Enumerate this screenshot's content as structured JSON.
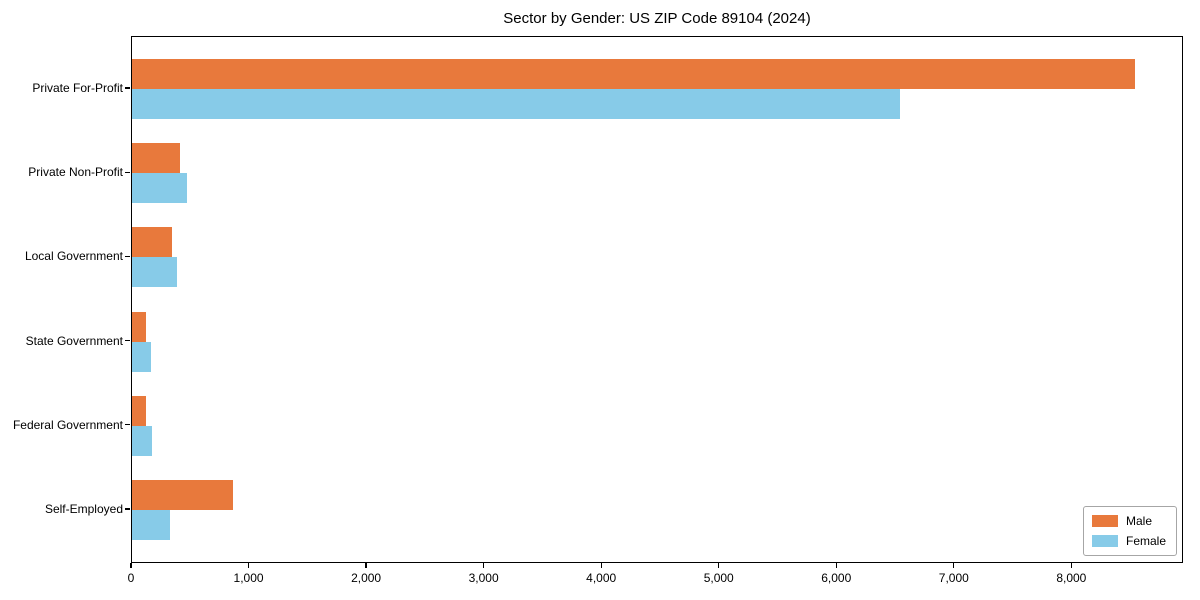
{
  "title": "Sector by Gender: US ZIP Code 89104 (2024)",
  "colors": {
    "male": "#e8793c",
    "female": "#87cbe8",
    "axis": "#000000",
    "legend_border": "#a6a6a6",
    "background": "#ffffff"
  },
  "legend": {
    "position": "lower right",
    "items": [
      {
        "label": "Male",
        "color": "#e8793c"
      },
      {
        "label": "Female",
        "color": "#87cbe8"
      }
    ]
  },
  "chart_data": {
    "type": "bar",
    "orientation": "horizontal",
    "title": "Sector by Gender: US ZIP Code 89104 (2024)",
    "categories": [
      "Private For-Profit",
      "Private Non-Profit",
      "Local Government",
      "State Government",
      "Federal Government",
      "Self-Employed"
    ],
    "series": [
      {
        "name": "Male",
        "color": "#e8793c",
        "values": [
          8530,
          410,
          340,
          120,
          115,
          860
        ]
      },
      {
        "name": "Female",
        "color": "#87cbe8",
        "values": [
          6530,
          465,
          385,
          160,
          170,
          320
        ]
      }
    ],
    "xlabel": "",
    "ylabel": "",
    "xlim": [
      0,
      8950
    ],
    "xticks": [
      0,
      1000,
      2000,
      3000,
      4000,
      5000,
      6000,
      7000,
      8000
    ],
    "xtick_labels": [
      "0",
      "1,000",
      "2,000",
      "3,000",
      "4,000",
      "5,000",
      "6,000",
      "7,000",
      "8,000"
    ],
    "grid": false,
    "legend_position": "lower right"
  }
}
